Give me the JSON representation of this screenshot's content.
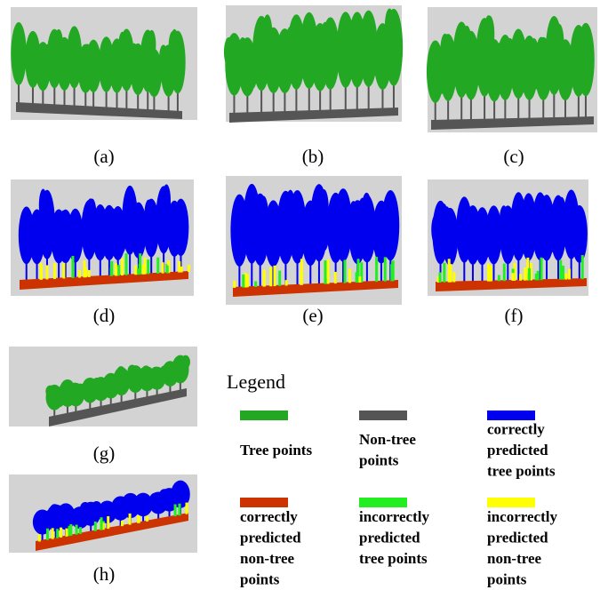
{
  "panels": [
    {
      "label": "(a)"
    },
    {
      "label": "(b)"
    },
    {
      "label": "(c)"
    },
    {
      "label": "(d)"
    },
    {
      "label": "(e)"
    },
    {
      "label": "(f)"
    },
    {
      "label": "(g)"
    },
    {
      "label": "(h)"
    }
  ],
  "legend": {
    "title": "Legend",
    "items": [
      {
        "lines": [
          "Tree points"
        ],
        "color": "#22a822"
      },
      {
        "lines": [
          "Non-tree",
          "points"
        ],
        "color": "#555555"
      },
      {
        "lines": [
          "correctly",
          "predicted",
          "tree points"
        ],
        "color": "#0000ee"
      },
      {
        "lines": [
          "correctly",
          "predicted",
          "non-tree",
          "points"
        ],
        "color": "#cc3300"
      },
      {
        "lines": [
          "incorrectly",
          "predicted",
          "tree points"
        ],
        "color": "#22ee22"
      },
      {
        "lines": [
          "incorrectly",
          "predicted",
          "non-tree",
          "points"
        ],
        "color": "#ffff00"
      }
    ]
  }
}
